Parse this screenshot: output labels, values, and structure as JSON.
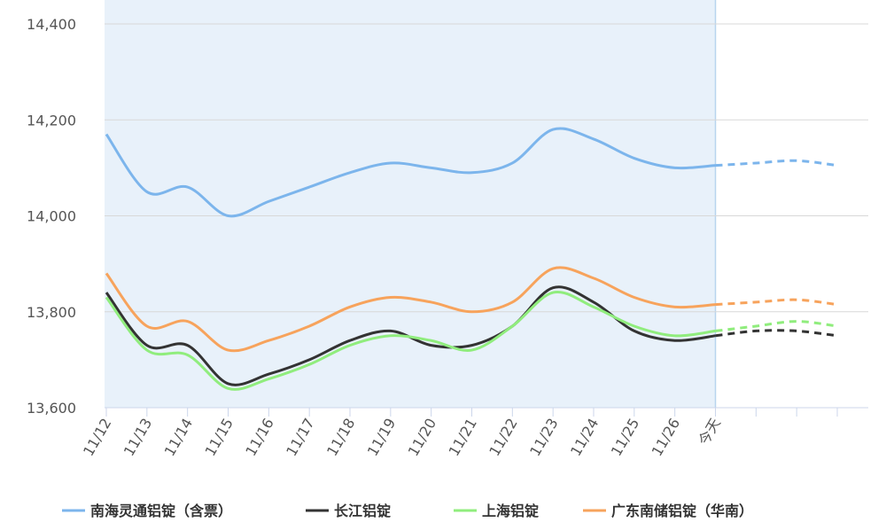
{
  "chart_data": {
    "type": "line",
    "categories": [
      "11/12",
      "11/13",
      "11/14",
      "11/15",
      "11/16",
      "11/17",
      "11/18",
      "11/19",
      "11/20",
      "11/21",
      "11/22",
      "11/23",
      "11/24",
      "11/25",
      "11/26",
      "今天",
      null,
      null,
      null
    ],
    "series": [
      {
        "name": "南海灵通铝锭（含票）",
        "color": "#7cb5ec",
        "values": [
          14170,
          14050,
          14060,
          14000,
          14030,
          14060,
          14090,
          14110,
          14100,
          14090,
          14110,
          14180,
          14160,
          14120,
          14100,
          14105,
          14110,
          14115,
          14105
        ]
      },
      {
        "name": "长江铝锭",
        "color": "#333333",
        "values": [
          13840,
          13730,
          13730,
          13650,
          13670,
          13700,
          13740,
          13760,
          13730,
          13730,
          13770,
          13850,
          13820,
          13760,
          13740,
          13750,
          13760,
          13760,
          13750
        ]
      },
      {
        "name": "上海铝锭",
        "color": "#90ed7d",
        "values": [
          13830,
          13720,
          13710,
          13640,
          13660,
          13690,
          13730,
          13750,
          13740,
          13720,
          13770,
          13840,
          13810,
          13770,
          13750,
          13760,
          13770,
          13780,
          13770
        ]
      },
      {
        "name": "广东南储铝锭（华南）",
        "color": "#f7a35c",
        "values": [
          13880,
          13770,
          13780,
          13720,
          13740,
          13770,
          13810,
          13830,
          13820,
          13800,
          13820,
          13890,
          13870,
          13830,
          13810,
          13815,
          13820,
          13825,
          13815
        ]
      }
    ],
    "ylim": [
      13600,
      14400
    ],
    "yticks": [
      {
        "value": 13600,
        "label": "13,600"
      },
      {
        "value": 13800,
        "label": "13,800"
      },
      {
        "value": 14000,
        "label": "14,000"
      },
      {
        "value": 14200,
        "label": "14,200"
      },
      {
        "value": 14400,
        "label": "14,400"
      }
    ],
    "grid": true
  }
}
